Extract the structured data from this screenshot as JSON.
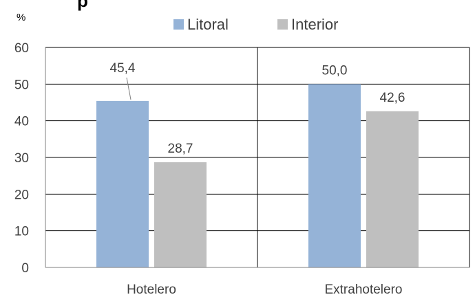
{
  "chart_data": {
    "type": "bar",
    "unit_label": "%",
    "categories": [
      "Hotelero",
      "Extrahotelero"
    ],
    "series": [
      {
        "name": "Litoral",
        "values": [
          45.4,
          50.0
        ],
        "value_labels": [
          "45,4",
          "50,0"
        ],
        "color": "#95b3d7"
      },
      {
        "name": "Interior",
        "values": [
          28.7,
          42.6
        ],
        "value_labels": [
          "28,7",
          "42,6"
        ],
        "color": "#bfbfbf"
      }
    ],
    "ylim": [
      0,
      60
    ],
    "yticks": [
      0,
      10,
      20,
      30,
      40,
      50,
      60
    ],
    "grid": true,
    "legend_position": "top-center",
    "colors": {
      "axis": "#7f7f7f",
      "grid": "#000000",
      "text": "#404040"
    }
  }
}
